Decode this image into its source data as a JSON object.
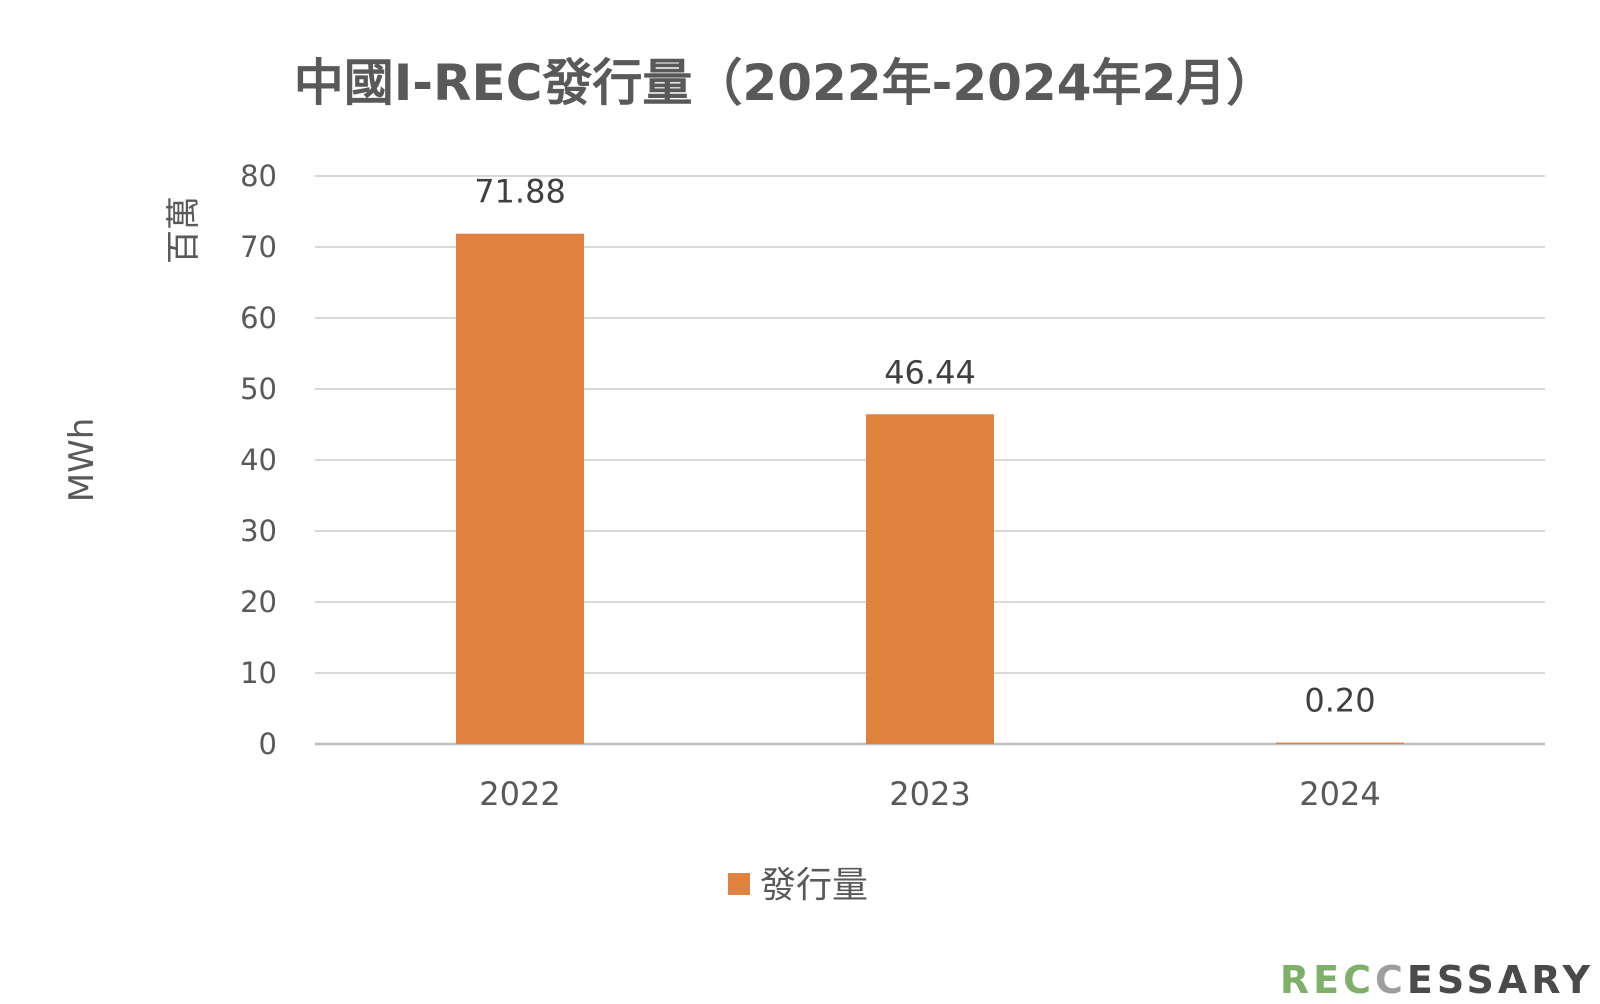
{
  "chart_data": {
    "type": "bar",
    "title": "中國I-REC發行量（2022年-2024年2月）",
    "ylabel": "MWh",
    "yunit": "百萬",
    "categories": [
      "2022",
      "2023",
      "2024"
    ],
    "series": [
      {
        "name": "發行量",
        "values": [
          71.88,
          46.44,
          0.2
        ],
        "labels": [
          "71.88",
          "46.44",
          "0.20"
        ],
        "color": "#E0823F"
      }
    ],
    "ylim": [
      0,
      80
    ],
    "yticks": [
      0,
      10,
      20,
      30,
      40,
      50,
      60,
      70,
      80
    ],
    "grid": true,
    "legend_position": "bottom"
  },
  "watermark": {
    "text": "RECCESSARY",
    "colors": [
      "#7FB069",
      "#7FB069",
      "#7FB069",
      "#9E9E9E",
      "#4A4A4A",
      "#4A4A4A",
      "#4A4A4A",
      "#4A4A4A",
      "#4A4A4A",
      "#4A4A4A"
    ]
  },
  "colors": {
    "grid": "#D9D9D9",
    "axis": "#BFBFBF",
    "text": "#595959"
  }
}
